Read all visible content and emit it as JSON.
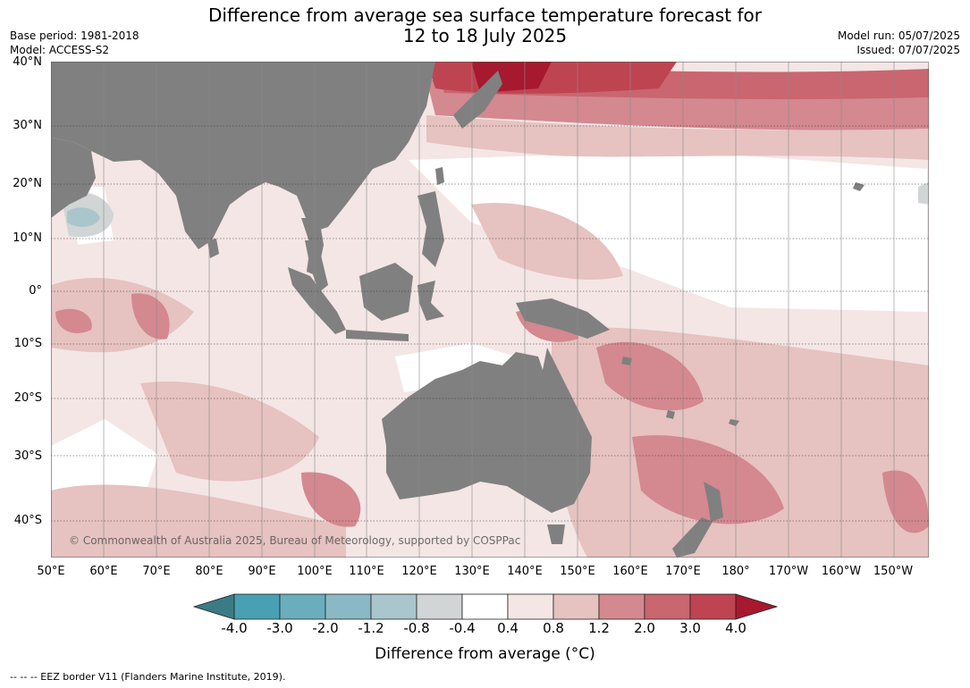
{
  "title": {
    "line1": "Difference from average sea surface temperature forecast for",
    "line2": "12 to 18 July 2025"
  },
  "meta_left": {
    "base_period": "Base period: 1981-2018",
    "model": "Model: ACCESS-S2"
  },
  "meta_right": {
    "model_run": "Model run: 05/07/2025",
    "issued": "Issued: 07/07/2025"
  },
  "lat_labels": [
    "40°N",
    "30°N",
    "20°N",
    "10°N",
    "0°",
    "10°S",
    "20°S",
    "30°S",
    "40°S"
  ],
  "lon_labels": [
    "50°E",
    "60°E",
    "70°E",
    "80°E",
    "90°E",
    "100°E",
    "110°E",
    "120°E",
    "130°E",
    "140°E",
    "150°E",
    "160°E",
    "170°E",
    "180°",
    "170°W",
    "160°W",
    "150°W"
  ],
  "colorbar": {
    "ticks": [
      "-4.0",
      "-3.0",
      "-2.0",
      "-1.2",
      "-0.8",
      "-0.4",
      "0.4",
      "0.8",
      "1.2",
      "2.0",
      "3.0",
      "4.0"
    ],
    "colors": [
      "#3b7b86",
      "#48a0b2",
      "#6aaebd",
      "#8ab9c5",
      "#a9c6cc",
      "#d1d5d6",
      "#ffffff",
      "#f4e6e5",
      "#e6c2c0",
      "#d48890",
      "#c96670",
      "#bf4451",
      "#a6192e"
    ],
    "title": "Difference from average (°C)"
  },
  "map": {
    "land_color": "#808080",
    "extent": {
      "lon": [
        50,
        215
      ],
      "lat": [
        -46,
        40
      ]
    }
  },
  "copyright": "© Commonwealth of Australia 2025, Bureau of Meteorology, supported by COSPPac",
  "footer": "--  --  -- EEZ border V11 (Flanders Marine Institute, 2019)."
}
